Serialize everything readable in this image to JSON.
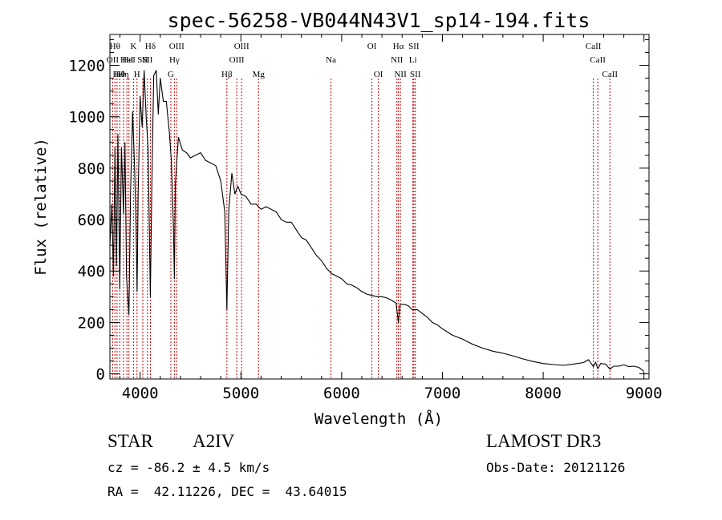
{
  "chart_data": {
    "type": "line",
    "title": "spec-56258-VB044N43V1_sp14-194.fits",
    "xlabel": "Wavelength (Å)",
    "ylabel": "Flux (relative)",
    "xlim": [
      3700,
      9050
    ],
    "ylim": [
      -20,
      1320
    ],
    "x_ticks": [
      4000,
      5000,
      6000,
      7000,
      8000,
      9000
    ],
    "y_ticks": [
      0,
      200,
      400,
      600,
      800,
      1000,
      1200
    ],
    "grid": false,
    "series": [
      {
        "name": "spectrum",
        "color": "#000000",
        "points": [
          [
            3700,
            500
          ],
          [
            3720,
            660
          ],
          [
            3735,
            380
          ],
          [
            3750,
            880
          ],
          [
            3765,
            420
          ],
          [
            3780,
            930
          ],
          [
            3798,
            330
          ],
          [
            3815,
            880
          ],
          [
            3835,
            620
          ],
          [
            3850,
            900
          ],
          [
            3865,
            380
          ],
          [
            3889,
            230
          ],
          [
            3905,
            700
          ],
          [
            3925,
            1020
          ],
          [
            3945,
            800
          ],
          [
            3960,
            560
          ],
          [
            3970,
            320
          ],
          [
            3980,
            700
          ],
          [
            4000,
            1080
          ],
          [
            4020,
            960
          ],
          [
            4040,
            1180
          ],
          [
            4060,
            1000
          ],
          [
            4080,
            870
          ],
          [
            4101,
            300
          ],
          [
            4115,
            700
          ],
          [
            4135,
            1160
          ],
          [
            4160,
            1180
          ],
          [
            4180,
            1010
          ],
          [
            4200,
            1150
          ],
          [
            4230,
            1060
          ],
          [
            4260,
            1060
          ],
          [
            4290,
            940
          ],
          [
            4310,
            830
          ],
          [
            4330,
            580
          ],
          [
            4340,
            370
          ],
          [
            4350,
            740
          ],
          [
            4380,
            920
          ],
          [
            4420,
            870
          ],
          [
            4460,
            860
          ],
          [
            4500,
            840
          ],
          [
            4550,
            850
          ],
          [
            4600,
            860
          ],
          [
            4650,
            830
          ],
          [
            4700,
            820
          ],
          [
            4750,
            810
          ],
          [
            4800,
            750
          ],
          [
            4840,
            630
          ],
          [
            4861,
            250
          ],
          [
            4880,
            640
          ],
          [
            4910,
            780
          ],
          [
            4940,
            700
          ],
          [
            4970,
            730
          ],
          [
            5000,
            700
          ],
          [
            5050,
            690
          ],
          [
            5100,
            660
          ],
          [
            5150,
            660
          ],
          [
            5200,
            640
          ],
          [
            5250,
            650
          ],
          [
            5300,
            640
          ],
          [
            5350,
            630
          ],
          [
            5400,
            600
          ],
          [
            5450,
            590
          ],
          [
            5500,
            590
          ],
          [
            5550,
            560
          ],
          [
            5600,
            530
          ],
          [
            5650,
            520
          ],
          [
            5700,
            490
          ],
          [
            5750,
            460
          ],
          [
            5800,
            440
          ],
          [
            5850,
            410
          ],
          [
            5900,
            390
          ],
          [
            5950,
            380
          ],
          [
            6000,
            370
          ],
          [
            6050,
            350
          ],
          [
            6100,
            345
          ],
          [
            6150,
            335
          ],
          [
            6200,
            320
          ],
          [
            6250,
            310
          ],
          [
            6300,
            305
          ],
          [
            6350,
            300
          ],
          [
            6400,
            300
          ],
          [
            6450,
            295
          ],
          [
            6500,
            285
          ],
          [
            6540,
            275
          ],
          [
            6563,
            200
          ],
          [
            6580,
            270
          ],
          [
            6620,
            270
          ],
          [
            6660,
            265
          ],
          [
            6700,
            250
          ],
          [
            6750,
            250
          ],
          [
            6800,
            235
          ],
          [
            6850,
            220
          ],
          [
            6900,
            200
          ],
          [
            6950,
            190
          ],
          [
            7000,
            175
          ],
          [
            7100,
            150
          ],
          [
            7200,
            135
          ],
          [
            7300,
            115
          ],
          [
            7400,
            100
          ],
          [
            7500,
            88
          ],
          [
            7600,
            80
          ],
          [
            7700,
            70
          ],
          [
            7800,
            58
          ],
          [
            7900,
            48
          ],
          [
            8000,
            40
          ],
          [
            8100,
            36
          ],
          [
            8200,
            33
          ],
          [
            8300,
            38
          ],
          [
            8400,
            44
          ],
          [
            8450,
            55
          ],
          [
            8498,
            28
          ],
          [
            8520,
            45
          ],
          [
            8542,
            20
          ],
          [
            8570,
            40
          ],
          [
            8620,
            38
          ],
          [
            8662,
            18
          ],
          [
            8700,
            30
          ],
          [
            8750,
            30
          ],
          [
            8800,
            35
          ],
          [
            8850,
            28
          ],
          [
            8900,
            30
          ],
          [
            8950,
            25
          ],
          [
            9000,
            10
          ]
        ]
      }
    ],
    "line_markers": [
      {
        "wavelength": 3727,
        "label": "OII",
        "row": 2
      },
      {
        "wavelength": 3750,
        "label": "Hθ",
        "row": 1
      },
      {
        "wavelength": 3771,
        "label": "Hι",
        "row": 3
      },
      {
        "wavelength": 3798,
        "label": "Hθ",
        "row": 3
      },
      {
        "wavelength": 3835,
        "label": "Hη",
        "row": 3
      },
      {
        "wavelength": 3869,
        "label": "HeI",
        "row": 2
      },
      {
        "wavelength": 3889,
        "label": "HeI",
        "row": 2
      },
      {
        "wavelength": 3934,
        "label": "K",
        "row": 1
      },
      {
        "wavelength": 3969,
        "label": "H",
        "row": 3
      },
      {
        "wavelength": 4026,
        "label": "SII",
        "row": 2
      },
      {
        "wavelength": 4072,
        "label": "SII",
        "row": 2
      },
      {
        "wavelength": 4102,
        "label": "Hδ",
        "row": 1
      },
      {
        "wavelength": 4305,
        "label": "G",
        "row": 3
      },
      {
        "wavelength": 4340,
        "label": "Hγ",
        "row": 2
      },
      {
        "wavelength": 4363,
        "label": "OIII",
        "row": 1
      },
      {
        "wavelength": 4861,
        "label": "Hβ",
        "row": 3
      },
      {
        "wavelength": 4959,
        "label": "OIII",
        "row": 2
      },
      {
        "wavelength": 5007,
        "label": "OIII",
        "row": 1
      },
      {
        "wavelength": 5175,
        "label": "Mg",
        "row": 3
      },
      {
        "wavelength": 5894,
        "label": "Na",
        "row": 2
      },
      {
        "wavelength": 6300,
        "label": "OI",
        "row": 1
      },
      {
        "wavelength": 6364,
        "label": "OI",
        "row": 3
      },
      {
        "wavelength": 6548,
        "label": "NII",
        "row": 2
      },
      {
        "wavelength": 6563,
        "label": "Hα",
        "row": 1
      },
      {
        "wavelength": 6583,
        "label": "NII",
        "row": 3
      },
      {
        "wavelength": 6707,
        "label": "Li",
        "row": 2
      },
      {
        "wavelength": 6716,
        "label": "SII",
        "row": 1
      },
      {
        "wavelength": 6731,
        "label": "SII",
        "row": 3
      },
      {
        "wavelength": 8498,
        "label": "CaII",
        "row": 1
      },
      {
        "wavelength": 8542,
        "label": "CaII",
        "row": 2
      },
      {
        "wavelength": 8662,
        "label": "CaII",
        "row": 3
      }
    ],
    "marker_color": "#cc0000"
  },
  "info": {
    "object_class": "STAR",
    "subclass": "A2IV",
    "survey": "LAMOST DR3",
    "redshift_text": "cz = -86.2 ± 4.5 km/s",
    "obs_date_text": "Obs-Date: 20121126",
    "coords_text": "RA =  42.11226, DEC =  43.64015"
  }
}
